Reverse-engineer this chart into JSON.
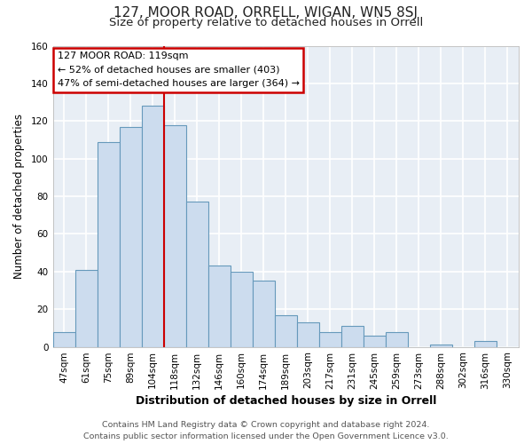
{
  "title": "127, MOOR ROAD, ORRELL, WIGAN, WN5 8SJ",
  "subtitle": "Size of property relative to detached houses in Orrell",
  "xlabel": "Distribution of detached houses by size in Orrell",
  "ylabel": "Number of detached properties",
  "bar_labels": [
    "47sqm",
    "61sqm",
    "75sqm",
    "89sqm",
    "104sqm",
    "118sqm",
    "132sqm",
    "146sqm",
    "160sqm",
    "174sqm",
    "189sqm",
    "203sqm",
    "217sqm",
    "231sqm",
    "245sqm",
    "259sqm",
    "273sqm",
    "288sqm",
    "302sqm",
    "316sqm",
    "330sqm"
  ],
  "bar_values": [
    8,
    41,
    109,
    117,
    128,
    118,
    77,
    43,
    40,
    35,
    17,
    13,
    8,
    11,
    6,
    8,
    0,
    1,
    0,
    3,
    0
  ],
  "bar_color": "#ccdcee",
  "bar_edge_color": "#6699bb",
  "ylim": [
    0,
    160
  ],
  "yticks": [
    0,
    20,
    40,
    60,
    80,
    100,
    120,
    140,
    160
  ],
  "vline_index": 5,
  "vline_color": "#cc0000",
  "annotation_title": "127 MOOR ROAD: 119sqm",
  "annotation_line1": "← 52% of detached houses are smaller (403)",
  "annotation_line2": "47% of semi-detached houses are larger (364) →",
  "footer_line1": "Contains HM Land Registry data © Crown copyright and database right 2024.",
  "footer_line2": "Contains public sector information licensed under the Open Government Licence v3.0.",
  "fig_bg_color": "#ffffff",
  "plot_bg_color": "#e8eef5",
  "grid_color": "#ffffff",
  "title_fontsize": 11,
  "subtitle_fontsize": 9.5,
  "xlabel_fontsize": 9,
  "ylabel_fontsize": 8.5,
  "tick_fontsize": 7.5,
  "annot_fontsize": 8,
  "footer_fontsize": 6.8
}
